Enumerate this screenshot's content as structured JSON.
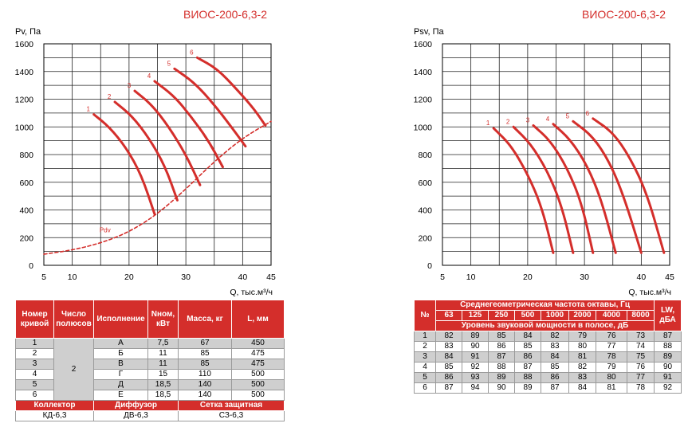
{
  "chart_data": [
    {
      "type": "line",
      "title": "ВИОС-200-6,3-2",
      "ylabel": "Pv, Па",
      "xlabel": "Q, тыс.м³/ч",
      "xlim": [
        5,
        45
      ],
      "ylim": [
        0,
        1600
      ],
      "xticks": [
        "5",
        "10",
        "20",
        "30",
        "40",
        "45"
      ],
      "yticks": [
        "0",
        "200",
        "400",
        "600",
        "800",
        "1000",
        "1200",
        "1400",
        "1600"
      ],
      "grid": true,
      "series": [
        {
          "name": "1",
          "points": [
            [
              13.8,
              1090
            ],
            [
              16.5,
              1000
            ],
            [
              19.5,
              850
            ],
            [
              22.2,
              650
            ],
            [
              24.5,
              370
            ]
          ]
        },
        {
          "name": "2",
          "points": [
            [
              17.5,
              1180
            ],
            [
              20.5,
              1080
            ],
            [
              23.5,
              920
            ],
            [
              26.3,
              720
            ],
            [
              28.5,
              470
            ]
          ]
        },
        {
          "name": "3",
          "points": [
            [
              21.0,
              1260
            ],
            [
              24.0,
              1160
            ],
            [
              27.0,
              1000
            ],
            [
              30.0,
              800
            ],
            [
              32.5,
              580
            ]
          ]
        },
        {
          "name": "4",
          "points": [
            [
              24.5,
              1330
            ],
            [
              28.0,
              1220
            ],
            [
              31.0,
              1070
            ],
            [
              34.0,
              900
            ],
            [
              36.5,
              710
            ]
          ]
        },
        {
          "name": "5",
          "points": [
            [
              28.0,
              1420
            ],
            [
              31.5,
              1320
            ],
            [
              35.0,
              1160
            ],
            [
              38.0,
              1000
            ],
            [
              40.5,
              860
            ]
          ]
        },
        {
          "name": "6",
          "points": [
            [
              32.0,
              1500
            ],
            [
              35.5,
              1420
            ],
            [
              39.0,
              1270
            ],
            [
              42.0,
              1130
            ],
            [
              44.0,
              1010
            ]
          ]
        },
        {
          "name": "Pdv",
          "dashed": true,
          "points": [
            [
              5,
              80
            ],
            [
              10,
              110
            ],
            [
              15,
              160
            ],
            [
              20,
              240
            ],
            [
              25,
              370
            ],
            [
              30,
              550
            ],
            [
              35,
              750
            ],
            [
              40,
              920
            ],
            [
              45,
              1040
            ]
          ]
        }
      ]
    },
    {
      "type": "line",
      "title": "ВИОС-200-6,3-2",
      "ylabel": "Psv, Па",
      "xlabel": "Q, тыс.м³/ч",
      "xlim": [
        5,
        45
      ],
      "ylim": [
        0,
        1600
      ],
      "xticks": [
        "5",
        "10",
        "20",
        "30",
        "40",
        "45"
      ],
      "yticks": [
        "0",
        "200",
        "400",
        "600",
        "800",
        "1000",
        "1200",
        "1400",
        "1600"
      ],
      "grid": true,
      "series": [
        {
          "name": "1",
          "points": [
            [
              14.0,
              990
            ],
            [
              17.0,
              870
            ],
            [
              20.0,
              660
            ],
            [
              22.5,
              420
            ],
            [
              24.5,
              90
            ]
          ]
        },
        {
          "name": "2",
          "points": [
            [
              17.5,
              1000
            ],
            [
              20.5,
              880
            ],
            [
              23.5,
              680
            ],
            [
              26.0,
              430
            ],
            [
              28.0,
              90
            ]
          ]
        },
        {
          "name": "3",
          "points": [
            [
              21.0,
              1010
            ],
            [
              24.0,
              900
            ],
            [
              27.0,
              700
            ],
            [
              29.5,
              450
            ],
            [
              31.5,
              90
            ]
          ]
        },
        {
          "name": "4",
          "points": [
            [
              24.5,
              1020
            ],
            [
              27.5,
              910
            ],
            [
              30.5,
              720
            ],
            [
              33.0,
              470
            ],
            [
              35.5,
              90
            ]
          ]
        },
        {
          "name": "5",
          "points": [
            [
              28.0,
              1040
            ],
            [
              31.5,
              930
            ],
            [
              34.5,
              740
            ],
            [
              37.0,
              490
            ],
            [
              40.0,
              90
            ]
          ]
        },
        {
          "name": "6",
          "points": [
            [
              31.5,
              1060
            ],
            [
              35.0,
              960
            ],
            [
              38.0,
              780
            ],
            [
              41.0,
              520
            ],
            [
              44.0,
              90
            ]
          ]
        }
      ]
    }
  ],
  "left_table": {
    "headers": [
      "Номер кривой",
      "Число полюсов",
      "Исполнение",
      "Nном, кВт",
      "Масса, кг",
      "L, мм"
    ],
    "poles": "2",
    "rows": [
      [
        "1",
        "А",
        "7,5",
        "67",
        "450"
      ],
      [
        "2",
        "Б",
        "11",
        "85",
        "475"
      ],
      [
        "3",
        "В",
        "11",
        "85",
        "475"
      ],
      [
        "4",
        "Г",
        "15",
        "110",
        "500"
      ],
      [
        "5",
        "Д",
        "18,5",
        "140",
        "500"
      ],
      [
        "6",
        "Е",
        "18,5",
        "140",
        "500"
      ]
    ],
    "footer_headers": [
      "Коллектор",
      "Диффузор",
      "Сетка защитная"
    ],
    "footer_values": [
      "КД-6,3",
      "ДВ-6,3",
      "СЗ-6,3"
    ]
  },
  "right_table": {
    "col_num": "№",
    "group_title": "Среднегеометрическая частота октавы, Гц",
    "frequencies": [
      "63",
      "125",
      "250",
      "500",
      "1000",
      "2000",
      "4000",
      "8000"
    ],
    "sub_title": "Уровень звуковой мощности в полосе, дБ",
    "lw_header": "LW, дБА",
    "rows": [
      [
        "1",
        "82",
        "89",
        "85",
        "84",
        "82",
        "79",
        "76",
        "73",
        "87"
      ],
      [
        "2",
        "83",
        "90",
        "86",
        "85",
        "83",
        "80",
        "77",
        "74",
        "88"
      ],
      [
        "3",
        "84",
        "91",
        "87",
        "86",
        "84",
        "81",
        "78",
        "75",
        "89"
      ],
      [
        "4",
        "85",
        "92",
        "88",
        "87",
        "85",
        "82",
        "79",
        "76",
        "90"
      ],
      [
        "5",
        "86",
        "93",
        "89",
        "88",
        "86",
        "83",
        "80",
        "77",
        "91"
      ],
      [
        "6",
        "87",
        "94",
        "90",
        "89",
        "87",
        "84",
        "81",
        "78",
        "92"
      ]
    ]
  }
}
